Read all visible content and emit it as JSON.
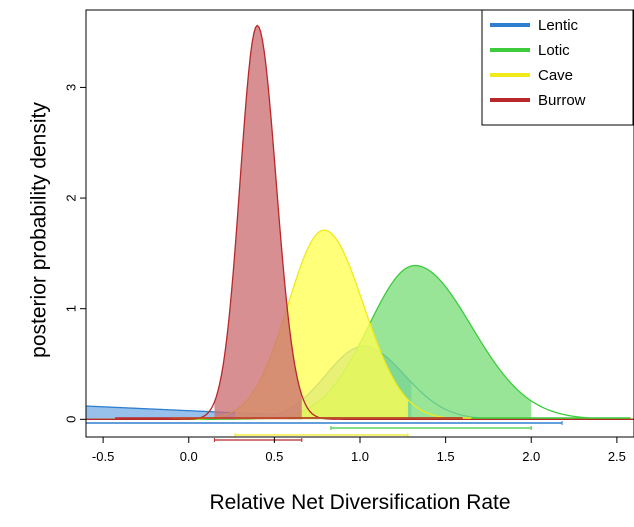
{
  "chart_data": {
    "type": "area",
    "title": "",
    "xlabel": "Relative Net Diversification Rate",
    "ylabel": "posterior probability density",
    "xlim": [
      -0.6,
      2.6
    ],
    "ylim": [
      -0.16,
      3.7
    ],
    "x_ticks": [
      -0.5,
      0.0,
      0.5,
      1.0,
      1.5,
      2.0,
      2.5
    ],
    "x_tick_labels": [
      "-0.5",
      "0.0",
      "0.5",
      "1.0",
      "1.5",
      "2.0",
      "2.5"
    ],
    "y_ticks": [
      0,
      1,
      2,
      3
    ],
    "y_tick_labels": [
      "0",
      "1",
      "2",
      "3"
    ],
    "grid": false,
    "legend_position": "top-right",
    "series": [
      {
        "name": "Lentic",
        "color": "#2f7fd0",
        "fill": "#7aaee6",
        "peak_x": 1.02,
        "peak_y": 0.66,
        "sd_left": 0.22,
        "sd_right": 0.24,
        "tail_left_x": -0.6,
        "tail_left_y": 0.1,
        "shaded_interval": [
          -0.6,
          1.3
        ],
        "wide_interval": [
          -0.6,
          2.18
        ],
        "narrow_interval": null
      },
      {
        "name": "Lotic",
        "color": "#3ccc3c",
        "fill": "#7bde7b",
        "peak_x": 1.32,
        "peak_y": 1.39,
        "sd_left": 0.27,
        "sd_right": 0.33,
        "shaded_interval": [
          0.58,
          2.0
        ],
        "wide_interval": [
          0.58,
          2.58
        ],
        "narrow_interval": [
          0.83,
          2.0
        ]
      },
      {
        "name": "Cave",
        "color": "#f0ea1a",
        "fill": "#ffff55",
        "peak_x": 0.79,
        "peak_y": 1.71,
        "sd_left": 0.21,
        "sd_right": 0.23,
        "shaded_interval": [
          0.27,
          1.28
        ],
        "wide_interval": [
          -0.1,
          1.65
        ],
        "narrow_interval": [
          0.27,
          1.28
        ]
      },
      {
        "name": "Burrow",
        "color": "#b8282a",
        "fill": "#cc7072",
        "peak_x": 0.4,
        "peak_y": 3.56,
        "sd_left": 0.1,
        "sd_right": 0.11,
        "shaded_interval": [
          0.15,
          0.66
        ],
        "wide_interval": [
          -0.43,
          1.6
        ],
        "narrow_interval": [
          0.15,
          0.66
        ]
      }
    ]
  }
}
